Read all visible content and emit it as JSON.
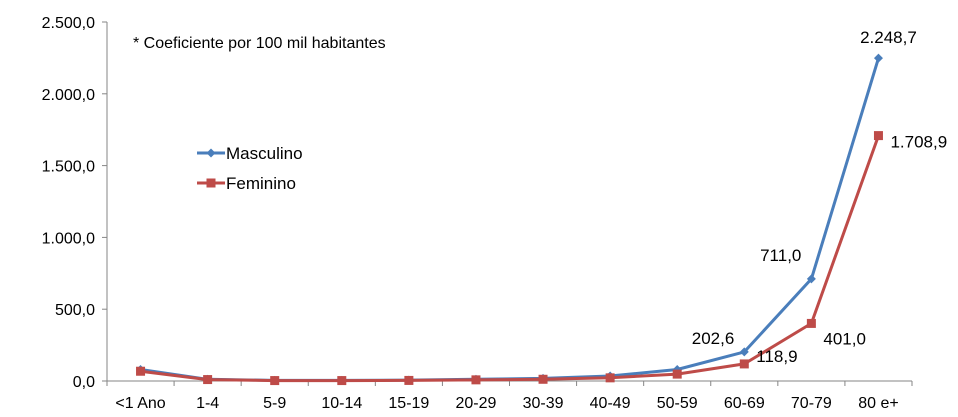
{
  "chart_data": {
    "type": "line",
    "title": "",
    "xlabel": "",
    "ylabel": "",
    "annotation": "* Coeficiente por 100 mil habitantes",
    "categories": [
      "<1 Ano",
      "1-4",
      "5-9",
      "10-14",
      "15-19",
      "20-29",
      "30-39",
      "40-49",
      "50-59",
      "60-69",
      "70-79",
      "80 e+"
    ],
    "ylim": [
      0,
      2500
    ],
    "yticks": [
      0,
      500,
      1000,
      1500,
      2000,
      2500
    ],
    "ytick_labels": [
      "0,0",
      "500,0",
      "1.000,0",
      "1.500,0",
      "2.000,0",
      "2.500,0"
    ],
    "grid": false,
    "legend_position": "left",
    "series": [
      {
        "name": "Masculino",
        "color": "#4a7ebb",
        "marker": "diamond",
        "values": [
          80,
          12,
          4,
          4,
          6,
          12,
          18,
          35,
          80,
          202.6,
          711.0,
          2248.7
        ],
        "data_labels": {
          "9": "202,6",
          "10": "711,0",
          "11": "2.248,7"
        }
      },
      {
        "name": "Feminino",
        "color": "#be4b48",
        "marker": "square",
        "values": [
          68,
          10,
          3,
          3,
          4,
          8,
          12,
          22,
          48,
          118.9,
          401.0,
          1708.9
        ],
        "data_labels": {
          "9": "118,9",
          "10": "401,0",
          "11": "1.708,9"
        }
      }
    ]
  }
}
